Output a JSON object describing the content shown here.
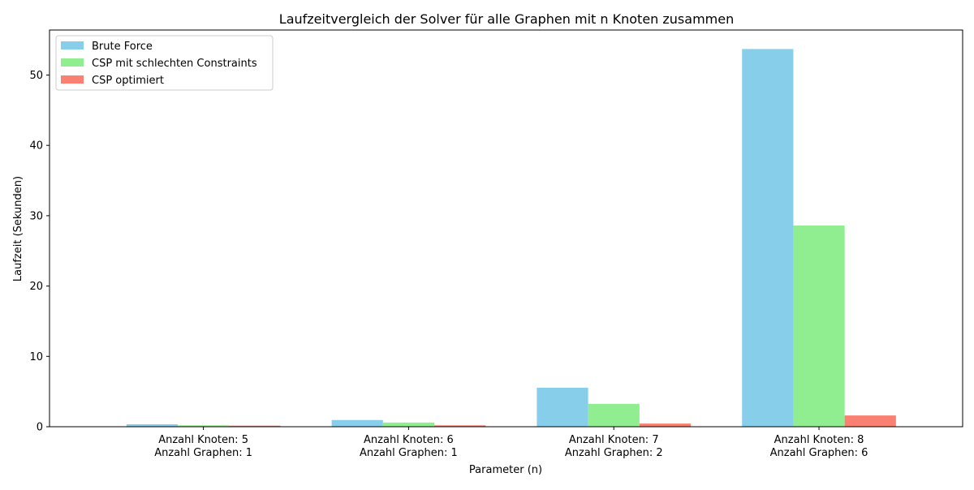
{
  "chart_data": {
    "type": "bar",
    "title": "Laufzeitvergleich der Solver für alle Graphen mit n Knoten zusammen",
    "xlabel": "Parameter (n)",
    "ylabel": "Laufzeit (Sekunden)",
    "categories": [
      [
        "Anzahl Knoten: 5",
        "Anzahl Graphen: 1"
      ],
      [
        "Anzahl Knoten: 6",
        "Anzahl Graphen: 1"
      ],
      [
        "Anzahl Knoten: 7",
        "Anzahl Graphen: 2"
      ],
      [
        "Anzahl Knoten: 8",
        "Anzahl Graphen: 6"
      ]
    ],
    "series": [
      {
        "name": "Brute Force",
        "color": "#87ceeb",
        "values": [
          0.35,
          0.95,
          5.55,
          53.7
        ]
      },
      {
        "name": "CSP mit schlechten Constraints",
        "color": "#90ee90",
        "values": [
          0.2,
          0.6,
          3.25,
          28.6
        ]
      },
      {
        "name": "CSP optimiert",
        "color": "#fa8072",
        "values": [
          0.15,
          0.2,
          0.45,
          1.6
        ]
      }
    ],
    "yticks": [
      0,
      10,
      20,
      30,
      40,
      50
    ],
    "ylim": [
      0,
      56.4
    ],
    "grid": false,
    "legend_position": "top-left"
  }
}
